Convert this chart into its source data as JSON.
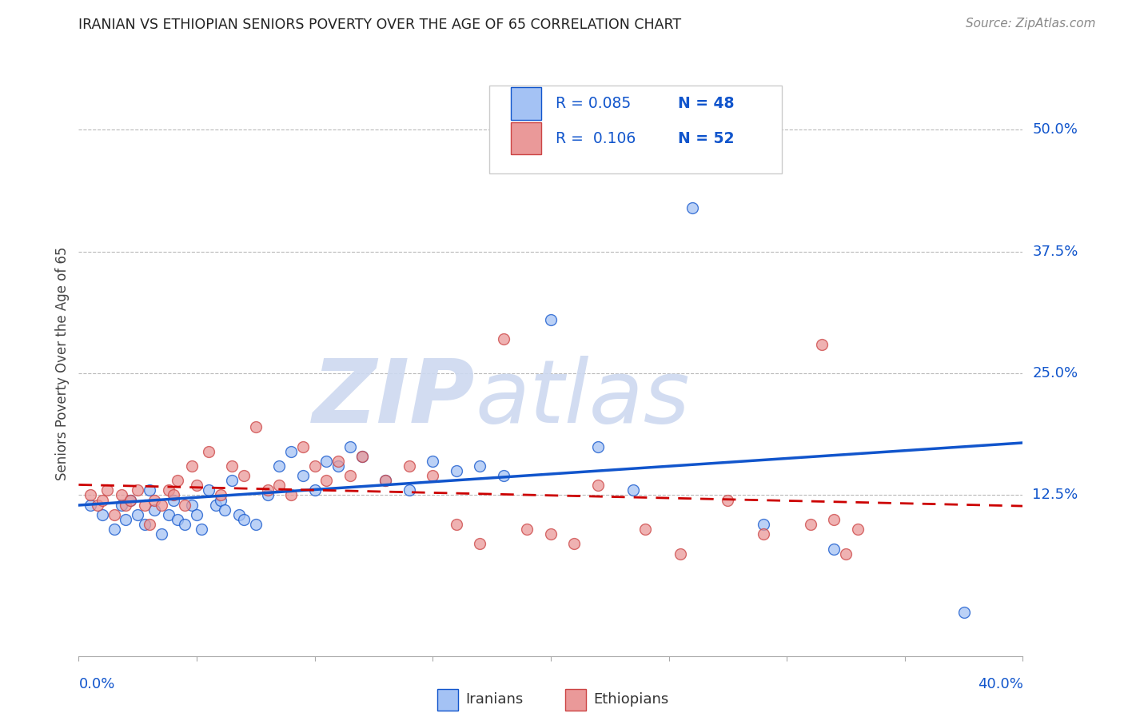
{
  "title": "IRANIAN VS ETHIOPIAN SENIORS POVERTY OVER THE AGE OF 65 CORRELATION CHART",
  "source": "Source: ZipAtlas.com",
  "ylabel": "Seniors Poverty Over the Age of 65",
  "ytick_labels": [
    "50.0%",
    "37.5%",
    "25.0%",
    "12.5%"
  ],
  "ytick_values": [
    0.5,
    0.375,
    0.25,
    0.125
  ],
  "xmin": 0.0,
  "xmax": 0.4,
  "ymin": -0.04,
  "ymax": 0.56,
  "legend_iranian_R": "0.085",
  "legend_iranian_N": "48",
  "legend_ethiopian_R": "0.106",
  "legend_ethiopian_N": "52",
  "color_iranian": "#a4c2f4",
  "color_ethiopian": "#ea9999",
  "color_trend_iranian": "#1155cc",
  "color_trend_ethiopian": "#cc0000",
  "color_axis_labels": "#1155cc",
  "watermark_zip": "ZIP",
  "watermark_atlas": "atlas",
  "watermark_color_zip": "#c9daf8",
  "watermark_color_atlas": "#c9daf8",
  "iranians_x": [
    0.005,
    0.01,
    0.015,
    0.018,
    0.02,
    0.022,
    0.025,
    0.028,
    0.03,
    0.032,
    0.035,
    0.038,
    0.04,
    0.042,
    0.045,
    0.048,
    0.05,
    0.052,
    0.055,
    0.058,
    0.06,
    0.062,
    0.065,
    0.068,
    0.07,
    0.075,
    0.08,
    0.085,
    0.09,
    0.095,
    0.1,
    0.105,
    0.11,
    0.115,
    0.12,
    0.13,
    0.14,
    0.15,
    0.16,
    0.17,
    0.18,
    0.2,
    0.22,
    0.235,
    0.26,
    0.29,
    0.32,
    0.375
  ],
  "iranians_y": [
    0.115,
    0.105,
    0.09,
    0.115,
    0.1,
    0.12,
    0.105,
    0.095,
    0.13,
    0.11,
    0.085,
    0.105,
    0.12,
    0.1,
    0.095,
    0.115,
    0.105,
    0.09,
    0.13,
    0.115,
    0.12,
    0.11,
    0.14,
    0.105,
    0.1,
    0.095,
    0.125,
    0.155,
    0.17,
    0.145,
    0.13,
    0.16,
    0.155,
    0.175,
    0.165,
    0.14,
    0.13,
    0.16,
    0.15,
    0.155,
    0.145,
    0.305,
    0.175,
    0.13,
    0.42,
    0.095,
    0.07,
    0.005
  ],
  "ethiopians_x": [
    0.005,
    0.008,
    0.01,
    0.012,
    0.015,
    0.018,
    0.02,
    0.022,
    0.025,
    0.028,
    0.03,
    0.032,
    0.035,
    0.038,
    0.04,
    0.042,
    0.045,
    0.048,
    0.05,
    0.055,
    0.06,
    0.065,
    0.07,
    0.075,
    0.08,
    0.085,
    0.09,
    0.095,
    0.1,
    0.105,
    0.11,
    0.115,
    0.12,
    0.13,
    0.14,
    0.15,
    0.16,
    0.17,
    0.18,
    0.19,
    0.2,
    0.21,
    0.22,
    0.24,
    0.255,
    0.275,
    0.29,
    0.31,
    0.315,
    0.32,
    0.325,
    0.33
  ],
  "ethiopians_y": [
    0.125,
    0.115,
    0.12,
    0.13,
    0.105,
    0.125,
    0.115,
    0.12,
    0.13,
    0.115,
    0.095,
    0.12,
    0.115,
    0.13,
    0.125,
    0.14,
    0.115,
    0.155,
    0.135,
    0.17,
    0.125,
    0.155,
    0.145,
    0.195,
    0.13,
    0.135,
    0.125,
    0.175,
    0.155,
    0.14,
    0.16,
    0.145,
    0.165,
    0.14,
    0.155,
    0.145,
    0.095,
    0.075,
    0.285,
    0.09,
    0.085,
    0.075,
    0.135,
    0.09,
    0.065,
    0.12,
    0.085,
    0.095,
    0.28,
    0.1,
    0.065,
    0.09
  ]
}
